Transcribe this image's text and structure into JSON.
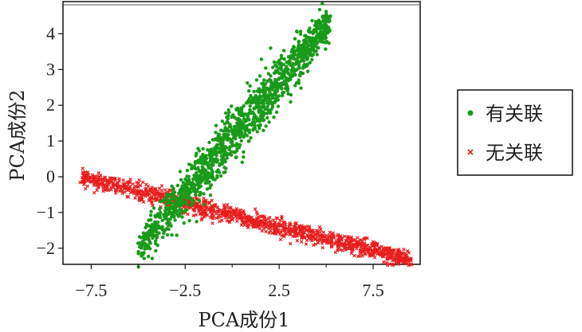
{
  "chart_data": {
    "type": "scatter",
    "xlabel": "PCA成份1",
    "ylabel": "PCA成份2",
    "xlim": [
      -9.0,
      10.0
    ],
    "ylim": [
      -2.45,
      4.9
    ],
    "x_ticks": [
      "-7.5",
      "-2.5",
      "2.5",
      "7.5"
    ],
    "x_tick_values": [
      -7.5,
      -2.5,
      2.5,
      7.5
    ],
    "y_ticks": [
      "-2",
      "-1",
      "0",
      "1",
      "2",
      "3",
      "4"
    ],
    "y_tick_values": [
      -2,
      -1,
      0,
      1,
      2,
      3,
      4
    ],
    "grid": false,
    "legend_position": "right",
    "series": [
      {
        "name": "有关联",
        "marker": "circle",
        "color": "#1a9a1a",
        "trend": {
          "x_range": [
            -5.0,
            5.2
          ],
          "slope": 0.62,
          "intercept": 1.1,
          "width": 0.3
        },
        "points_summary": "dense elongated cloud from about (-5.0, -1.9) to (5.2, 4.6)"
      },
      {
        "name": "无关联",
        "marker": "cross",
        "color": "#e81d1d",
        "trend": {
          "x_range": [
            -8.0,
            9.5
          ],
          "slope": -0.1325,
          "intercept": -1.07,
          "width": 0.12
        },
        "points_summary": "dense thin band from about (-8.0, 0.1) to (9.5, -2.3)"
      }
    ]
  },
  "legend": {
    "items": [
      {
        "label": "有关联",
        "color": "#1a9a1a",
        "marker": "circle"
      },
      {
        "label": "无关联",
        "color": "#e81d1d",
        "marker": "cross"
      }
    ]
  }
}
